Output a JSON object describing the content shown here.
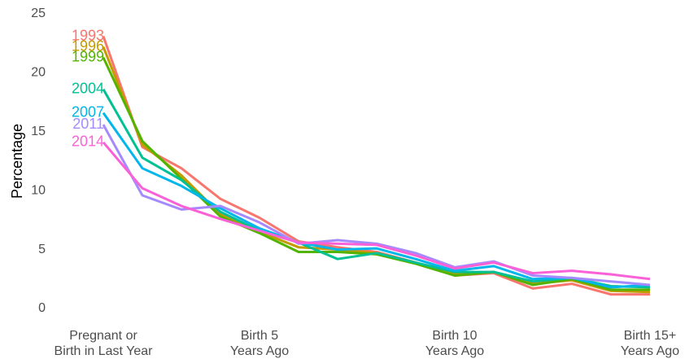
{
  "chart_data": {
    "type": "line",
    "y_label": "Percentage",
    "categories": [
      "Pregnant or\nBirth in Last Year",
      null,
      null,
      null,
      "Birth 5\nYears Ago",
      null,
      null,
      null,
      null,
      "Birth 10\nYears Ago",
      null,
      null,
      null,
      null,
      "Birth 15+\nYears Ago"
    ],
    "ylim": [
      0,
      25
    ],
    "yticks": [
      0,
      5,
      10,
      15,
      20,
      25
    ],
    "grid": false,
    "legend": "direct-labels",
    "series": [
      {
        "name": "1993",
        "color": "#F8766D",
        "values": [
          23.1,
          13.7,
          11.9,
          9.3,
          7.7,
          5.7,
          5.2,
          4.8,
          3.9,
          2.8,
          3.0,
          1.7,
          2.1,
          1.2,
          1.2
        ]
      },
      {
        "name": "1996",
        "color": "#C49A00",
        "values": [
          22.2,
          13.9,
          11.3,
          8.0,
          6.5,
          5.2,
          5.0,
          4.7,
          3.9,
          2.9,
          3.1,
          2.1,
          2.4,
          1.5,
          1.4
        ]
      },
      {
        "name": "1999",
        "color": "#53B400",
        "values": [
          21.3,
          14.2,
          11.0,
          7.8,
          6.4,
          4.8,
          4.8,
          4.6,
          3.8,
          2.8,
          3.1,
          2.0,
          2.5,
          1.6,
          1.6
        ]
      },
      {
        "name": "2004",
        "color": "#00C094",
        "values": [
          18.6,
          12.8,
          10.9,
          8.2,
          6.6,
          5.6,
          4.2,
          4.7,
          3.9,
          3.1,
          3.1,
          2.3,
          2.6,
          1.9,
          1.8
        ]
      },
      {
        "name": "2007",
        "color": "#00B6EB",
        "values": [
          16.6,
          11.9,
          10.4,
          8.5,
          6.8,
          5.6,
          5.0,
          5.1,
          4.2,
          3.2,
          3.6,
          2.5,
          2.6,
          1.8,
          2.0
        ]
      },
      {
        "name": "2011",
        "color": "#A58AFF",
        "values": [
          15.6,
          9.6,
          8.4,
          8.7,
          7.3,
          5.5,
          5.8,
          5.5,
          4.7,
          3.5,
          4.0,
          2.8,
          2.6,
          2.3,
          2.0
        ]
      },
      {
        "name": "2014",
        "color": "#FB61D7",
        "values": [
          14.1,
          10.2,
          8.7,
          7.6,
          6.6,
          5.6,
          5.5,
          5.4,
          4.5,
          3.4,
          3.9,
          3.0,
          3.2,
          2.9,
          2.5
        ]
      }
    ]
  }
}
